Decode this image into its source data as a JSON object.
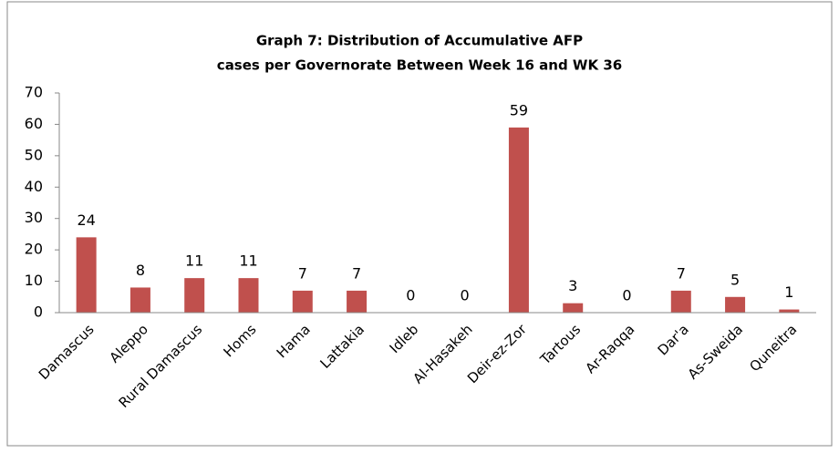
{
  "chart_data": {
    "type": "bar",
    "title": [
      "Graph 7: Distribution of Accumulative AFP",
      "cases per Governorate  Between Week 16  and  WK 36"
    ],
    "categories": [
      "Damascus",
      "Aleppo",
      "Rural Damascus",
      "Homs",
      "Hama",
      "Lattakia",
      "Idleb",
      "Al-Hasakeh",
      "Deir-ez-Zor",
      "Tartous",
      "Ar-Raqqa",
      "Dar'a",
      "As-Sweida",
      "Quneitra"
    ],
    "values": [
      24,
      8,
      11,
      11,
      7,
      7,
      0,
      0,
      59,
      3,
      0,
      7,
      5,
      1
    ],
    "color": "#c0504d",
    "ylim": [
      0,
      70
    ],
    "yticks": [
      0,
      10,
      20,
      30,
      40,
      50,
      60,
      70
    ],
    "grid": false
  }
}
